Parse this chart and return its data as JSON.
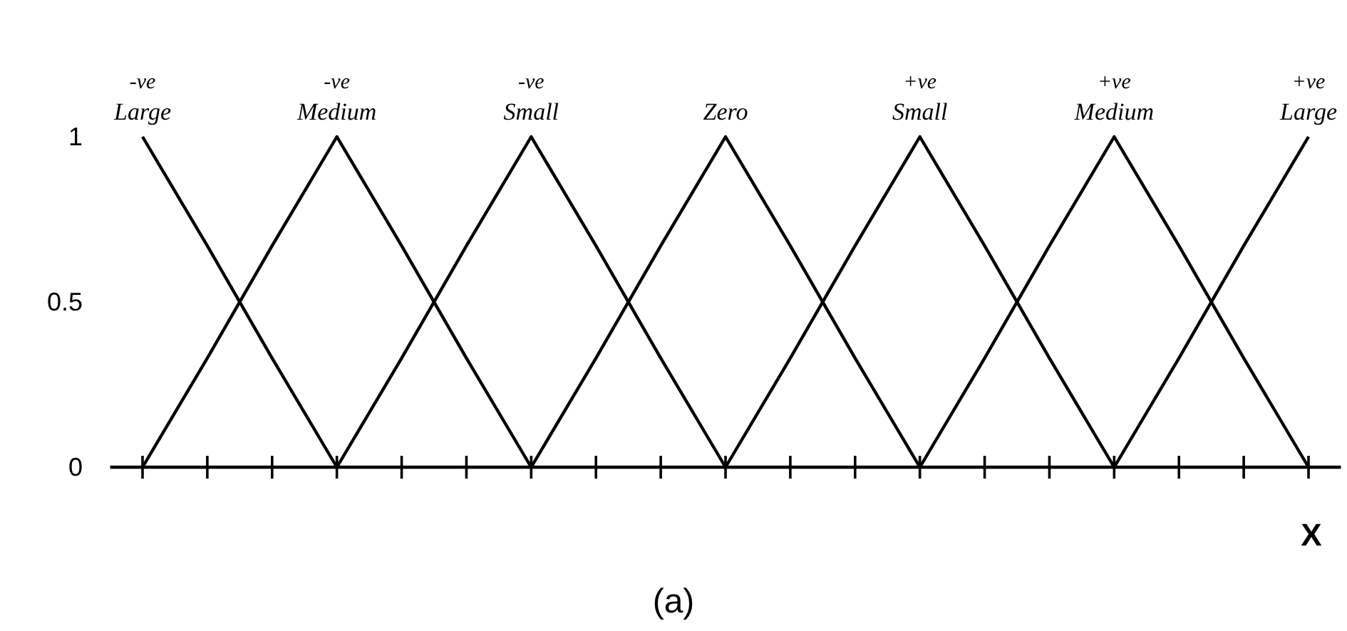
{
  "chart_data": {
    "type": "line",
    "xlabel": "X",
    "annotations": [
      "(a)"
    ],
    "categories": [
      null,
      null,
      null,
      null,
      null,
      null,
      null,
      null,
      null,
      null,
      null,
      null,
      null,
      null,
      null,
      null,
      null,
      null,
      null
    ],
    "ylim": [
      0,
      1
    ],
    "yticks": [
      0,
      0.5,
      1
    ],
    "tick_labels": "y",
    "marker": "none",
    "line_style": "solid",
    "series": [
      {
        "name": "-ve Large",
        "color": "#000000",
        "values": [
          1,
          0.67,
          0.33,
          0,
          null,
          null,
          null,
          null,
          null,
          null,
          null,
          null,
          null,
          null,
          null,
          null,
          null,
          null,
          null
        ]
      },
      {
        "name": "-ve Medium",
        "color": "#000000",
        "values": [
          0,
          0.33,
          0.67,
          1,
          0.67,
          0.33,
          0,
          null,
          null,
          null,
          null,
          null,
          null,
          null,
          null,
          null,
          null,
          null,
          null
        ]
      },
      {
        "name": "-ve Small",
        "color": "#000000",
        "values": [
          null,
          null,
          null,
          0,
          0.33,
          0.67,
          1,
          0.67,
          0.33,
          0,
          null,
          null,
          null,
          null,
          null,
          null,
          null,
          null,
          null
        ]
      },
      {
        "name": "Zero",
        "color": "#000000",
        "values": [
          null,
          null,
          null,
          null,
          null,
          null,
          0,
          0.33,
          0.67,
          1,
          0.67,
          0.33,
          0,
          null,
          null,
          null,
          null,
          null,
          null
        ]
      },
      {
        "name": "+ve Small",
        "color": "#000000",
        "values": [
          null,
          null,
          null,
          null,
          null,
          null,
          null,
          null,
          null,
          0,
          0.33,
          0.67,
          1,
          0.67,
          0.33,
          0,
          null,
          null,
          null
        ]
      },
      {
        "name": "+ve Medium",
        "color": "#000000",
        "values": [
          null,
          null,
          null,
          null,
          null,
          null,
          null,
          null,
          null,
          null,
          null,
          null,
          0,
          0.33,
          0.67,
          1,
          0.67,
          0.33,
          0
        ]
      },
      {
        "name": "+ve Large",
        "color": "#000000",
        "values": [
          null,
          null,
          null,
          null,
          null,
          null,
          null,
          null,
          null,
          null,
          null,
          null,
          null,
          null,
          null,
          0,
          0.33,
          0.67,
          1
        ]
      }
    ]
  }
}
